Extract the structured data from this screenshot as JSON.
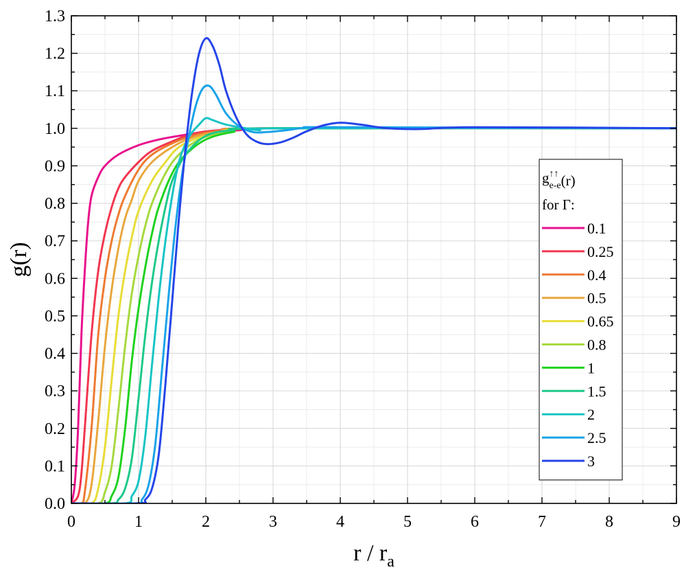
{
  "chart_data": {
    "type": "line",
    "xlabel": "r / r",
    "xlabel_sub": "a",
    "ylabel": "g(r)",
    "xlim": [
      0,
      9
    ],
    "ylim": [
      0,
      1.3
    ],
    "x_ticks": [
      "0",
      "1",
      "2",
      "3",
      "4",
      "5",
      "6",
      "7",
      "8",
      "9"
    ],
    "y_ticks": [
      "0.0",
      "0.1",
      "0.2",
      "0.3",
      "0.4",
      "0.5",
      "0.6",
      "0.7",
      "0.8",
      "0.9",
      "1.0",
      "1.1",
      "1.2",
      "1.3"
    ],
    "grid": true,
    "legend": {
      "position": "right",
      "title_main": "g",
      "title_sup": "↑↑",
      "title_sub": "e-e",
      "title_arg": "(r)",
      "subtitle": "for Γ:"
    },
    "series": [
      {
        "name": "0.1",
        "color": "#e8108c",
        "points": [
          [
            0,
            0
          ],
          [
            0.05,
            0.05
          ],
          [
            0.1,
            0.2
          ],
          [
            0.15,
            0.45
          ],
          [
            0.2,
            0.62
          ],
          [
            0.25,
            0.75
          ],
          [
            0.3,
            0.82
          ],
          [
            0.4,
            0.87
          ],
          [
            0.5,
            0.9
          ],
          [
            0.7,
            0.93
          ],
          [
            1.0,
            0.955
          ],
          [
            1.3,
            0.97
          ],
          [
            1.6,
            0.98
          ],
          [
            2.0,
            0.99
          ],
          [
            2.5,
            0.995
          ],
          [
            3,
            1.0
          ],
          [
            9,
            1.0
          ]
        ]
      },
      {
        "name": "0.25",
        "color": "#f2364f",
        "points": [
          [
            0,
            0
          ],
          [
            0.1,
            0.02
          ],
          [
            0.15,
            0.08
          ],
          [
            0.2,
            0.2
          ],
          [
            0.3,
            0.45
          ],
          [
            0.4,
            0.62
          ],
          [
            0.5,
            0.72
          ],
          [
            0.6,
            0.79
          ],
          [
            0.7,
            0.84
          ],
          [
            0.8,
            0.87
          ],
          [
            1.0,
            0.91
          ],
          [
            1.2,
            0.94
          ],
          [
            1.5,
            0.965
          ],
          [
            1.8,
            0.985
          ],
          [
            2.2,
            0.995
          ],
          [
            3,
            1.0
          ],
          [
            9,
            1.0
          ]
        ]
      },
      {
        "name": "0.4",
        "color": "#ee7a30",
        "points": [
          [
            0,
            0
          ],
          [
            0.15,
            0.0
          ],
          [
            0.2,
            0.03
          ],
          [
            0.3,
            0.2
          ],
          [
            0.4,
            0.45
          ],
          [
            0.5,
            0.6
          ],
          [
            0.6,
            0.7
          ],
          [
            0.7,
            0.77
          ],
          [
            0.8,
            0.82
          ],
          [
            1.0,
            0.89
          ],
          [
            1.2,
            0.93
          ],
          [
            1.5,
            0.96
          ],
          [
            1.8,
            0.98
          ],
          [
            2.2,
            0.993
          ],
          [
            3,
            1.0
          ],
          [
            9,
            1.0
          ]
        ]
      },
      {
        "name": "0.5",
        "color": "#e9a73d",
        "points": [
          [
            0,
            0
          ],
          [
            0.2,
            0.0
          ],
          [
            0.3,
            0.05
          ],
          [
            0.4,
            0.22
          ],
          [
            0.5,
            0.42
          ],
          [
            0.6,
            0.57
          ],
          [
            0.7,
            0.68
          ],
          [
            0.8,
            0.76
          ],
          [
            0.9,
            0.81
          ],
          [
            1.0,
            0.86
          ],
          [
            1.2,
            0.91
          ],
          [
            1.5,
            0.95
          ],
          [
            1.8,
            0.975
          ],
          [
            2.2,
            0.99
          ],
          [
            3,
            1.0
          ],
          [
            9,
            1.0
          ]
        ]
      },
      {
        "name": "0.65",
        "color": "#e8dc36",
        "points": [
          [
            0,
            0
          ],
          [
            0.3,
            0.0
          ],
          [
            0.4,
            0.04
          ],
          [
            0.5,
            0.15
          ],
          [
            0.6,
            0.33
          ],
          [
            0.7,
            0.5
          ],
          [
            0.8,
            0.62
          ],
          [
            0.9,
            0.71
          ],
          [
            1.0,
            0.78
          ],
          [
            1.2,
            0.86
          ],
          [
            1.4,
            0.91
          ],
          [
            1.6,
            0.95
          ],
          [
            1.9,
            0.975
          ],
          [
            2.3,
            0.99
          ],
          [
            3,
            1.0
          ],
          [
            9,
            1.0
          ]
        ]
      },
      {
        "name": "0.8",
        "color": "#a6d93e",
        "points": [
          [
            0,
            0
          ],
          [
            0.4,
            0.0
          ],
          [
            0.5,
            0.03
          ],
          [
            0.6,
            0.1
          ],
          [
            0.7,
            0.25
          ],
          [
            0.8,
            0.42
          ],
          [
            0.9,
            0.56
          ],
          [
            1.0,
            0.66
          ],
          [
            1.1,
            0.74
          ],
          [
            1.2,
            0.8
          ],
          [
            1.4,
            0.88
          ],
          [
            1.6,
            0.93
          ],
          [
            1.9,
            0.97
          ],
          [
            2.3,
            0.99
          ],
          [
            3,
            1.0
          ],
          [
            9,
            1.0
          ]
        ]
      },
      {
        "name": "1",
        "color": "#1fd21f",
        "points": [
          [
            0,
            0
          ],
          [
            0.5,
            0.0
          ],
          [
            0.6,
            0.02
          ],
          [
            0.7,
            0.07
          ],
          [
            0.8,
            0.2
          ],
          [
            0.9,
            0.38
          ],
          [
            1.0,
            0.52
          ],
          [
            1.1,
            0.63
          ],
          [
            1.2,
            0.72
          ],
          [
            1.3,
            0.79
          ],
          [
            1.5,
            0.88
          ],
          [
            1.7,
            0.93
          ],
          [
            2.0,
            0.97
          ],
          [
            2.4,
            0.99
          ],
          [
            3,
            1.0
          ],
          [
            9,
            1.0
          ]
        ]
      },
      {
        "name": "1.5",
        "color": "#1dc989",
        "points": [
          [
            0,
            0
          ],
          [
            0.6,
            0.0
          ],
          [
            0.7,
            0.01
          ],
          [
            0.8,
            0.04
          ],
          [
            0.9,
            0.12
          ],
          [
            1.0,
            0.28
          ],
          [
            1.1,
            0.45
          ],
          [
            1.2,
            0.59
          ],
          [
            1.3,
            0.7
          ],
          [
            1.4,
            0.79
          ],
          [
            1.5,
            0.86
          ],
          [
            1.7,
            0.93
          ],
          [
            2.0,
            0.98
          ],
          [
            2.4,
            0.995
          ],
          [
            3,
            1.0
          ],
          [
            9,
            1.0
          ]
        ]
      },
      {
        "name": "2",
        "color": "#18c4c4",
        "points": [
          [
            0,
            0
          ],
          [
            0.8,
            0.0
          ],
          [
            0.9,
            0.02
          ],
          [
            1.0,
            0.06
          ],
          [
            1.1,
            0.18
          ],
          [
            1.2,
            0.37
          ],
          [
            1.3,
            0.55
          ],
          [
            1.4,
            0.7
          ],
          [
            1.5,
            0.82
          ],
          [
            1.6,
            0.91
          ],
          [
            1.7,
            0.96
          ],
          [
            1.8,
            0.99
          ],
          [
            1.9,
            1.01
          ],
          [
            2.0,
            1.027
          ],
          [
            2.1,
            1.022
          ],
          [
            2.3,
            1.01
          ],
          [
            2.6,
            1.0
          ],
          [
            2.8,
            0.995
          ],
          [
            3.2,
            1.0
          ],
          [
            9,
            1.0
          ]
        ]
      },
      {
        "name": "2.5",
        "color": "#1aa3e8",
        "points": [
          [
            0,
            0
          ],
          [
            0.95,
            0.0
          ],
          [
            1.05,
            0.01
          ],
          [
            1.15,
            0.05
          ],
          [
            1.25,
            0.16
          ],
          [
            1.35,
            0.36
          ],
          [
            1.45,
            0.56
          ],
          [
            1.55,
            0.74
          ],
          [
            1.65,
            0.88
          ],
          [
            1.75,
            0.98
          ],
          [
            1.85,
            1.06
          ],
          [
            1.95,
            1.105
          ],
          [
            2.05,
            1.113
          ],
          [
            2.15,
            1.09
          ],
          [
            2.3,
            1.04
          ],
          [
            2.5,
            1.005
          ],
          [
            2.7,
            0.99
          ],
          [
            2.9,
            0.99
          ],
          [
            3.2,
            0.995
          ],
          [
            3.5,
            1.002
          ],
          [
            4,
            1.003
          ],
          [
            9,
            1.0
          ]
        ]
      },
      {
        "name": "3",
        "color": "#2545e8",
        "points": [
          [
            0,
            0
          ],
          [
            1.0,
            0.0
          ],
          [
            1.1,
            0.01
          ],
          [
            1.2,
            0.04
          ],
          [
            1.3,
            0.13
          ],
          [
            1.4,
            0.32
          ],
          [
            1.5,
            0.54
          ],
          [
            1.6,
            0.76
          ],
          [
            1.7,
            0.95
          ],
          [
            1.8,
            1.1
          ],
          [
            1.9,
            1.2
          ],
          [
            2.0,
            1.24
          ],
          [
            2.1,
            1.22
          ],
          [
            2.2,
            1.17
          ],
          [
            2.3,
            1.1
          ],
          [
            2.45,
            1.03
          ],
          [
            2.6,
            0.985
          ],
          [
            2.75,
            0.965
          ],
          [
            2.9,
            0.958
          ],
          [
            3.1,
            0.962
          ],
          [
            3.3,
            0.975
          ],
          [
            3.5,
            0.992
          ],
          [
            3.75,
            1.008
          ],
          [
            4.0,
            1.015
          ],
          [
            4.3,
            1.01
          ],
          [
            4.7,
            1.0
          ],
          [
            5.2,
            0.998
          ],
          [
            6,
            1.003
          ],
          [
            9,
            1.0
          ]
        ]
      }
    ]
  }
}
